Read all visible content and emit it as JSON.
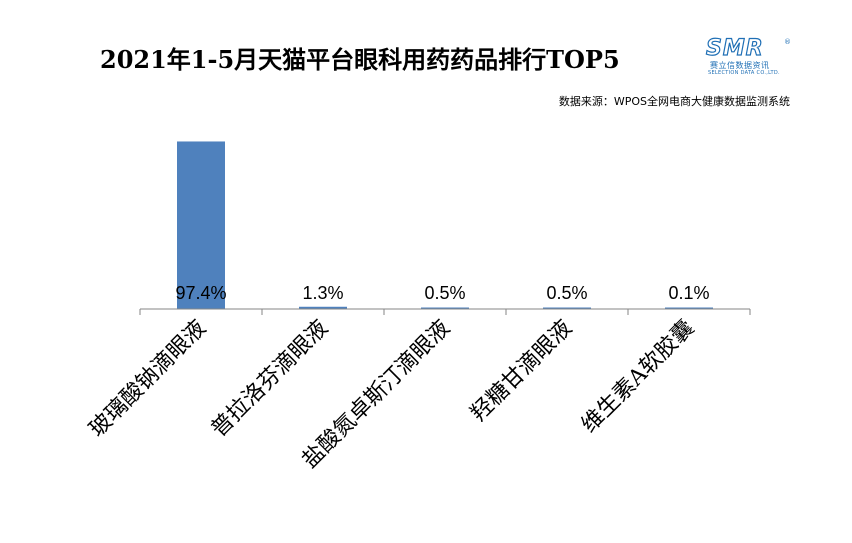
{
  "title": "2021年1-5月天猫平台眼科用药药品排行TOP5",
  "source": "数据来源：WPOS全网电商大健康数据监测系统",
  "logo": {
    "main": "SMR",
    "registered": "®",
    "sub": "赛立信数据资讯",
    "tiny": "SELECTION DATA CO.,LTD."
  },
  "chart_data": {
    "type": "bar",
    "categories": [
      "玻璃酸钠滴眼液",
      "普拉洛芬滴眼液",
      "盐酸氮卓斯汀滴眼液",
      "羟糖甘滴眼液",
      "维生素A软胶囊"
    ],
    "values": [
      97.4,
      1.3,
      0.5,
      0.5,
      0.1
    ],
    "value_labels": [
      "97.4%",
      "1.3%",
      "0.5%",
      "0.5%",
      "0.1%"
    ],
    "ylim": [
      0,
      100
    ],
    "grid": false,
    "legend": "none",
    "bar_color": "#4f81bd",
    "axis_color": "#868686"
  }
}
